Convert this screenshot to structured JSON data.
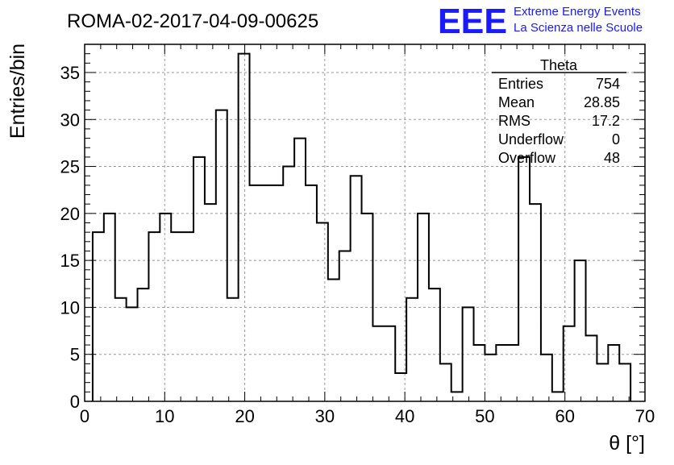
{
  "header": {
    "run_title": "ROMA-02-2017-04-09-00625",
    "logo_text": "EEE",
    "logo_line1": "Extreme Energy Events",
    "logo_line2": "La Scienza nelle Scuole"
  },
  "stats": {
    "title": "Theta",
    "rows": [
      {
        "label": "Entries",
        "value": "754"
      },
      {
        "label": "Mean",
        "value": "28.85"
      },
      {
        "label": "RMS",
        "value": "17.2"
      },
      {
        "label": "Underflow",
        "value": "0"
      },
      {
        "label": "Overflow",
        "value": "48"
      }
    ]
  },
  "colors": {
    "logo": "#1a1aff",
    "line": "#000000",
    "grid": "#999999"
  },
  "chart_data": {
    "type": "bar",
    "style": "step-histogram",
    "title": "",
    "xlabel": "θ [°]",
    "ylabel": "Entries/bin",
    "xlim": [
      0,
      70
    ],
    "ylim": [
      0,
      38
    ],
    "grid": true,
    "bin_width": 1.4,
    "bin_start": 1.0,
    "values": [
      18,
      20,
      11,
      10,
      12,
      18,
      20,
      18,
      18,
      26,
      21,
      31,
      11,
      37,
      23,
      23,
      23,
      25,
      28,
      23,
      19,
      13,
      16,
      24,
      20,
      8,
      8,
      3,
      11,
      20,
      12,
      4,
      1,
      10,
      6,
      5,
      6,
      6,
      26,
      21,
      5,
      1,
      8,
      15,
      7,
      4,
      6,
      4
    ],
    "x_ticks": [
      "0",
      "10",
      "20",
      "30",
      "40",
      "50",
      "60",
      "70"
    ],
    "y_ticks": [
      "0",
      "5",
      "10",
      "15",
      "20",
      "25",
      "30",
      "35"
    ]
  }
}
